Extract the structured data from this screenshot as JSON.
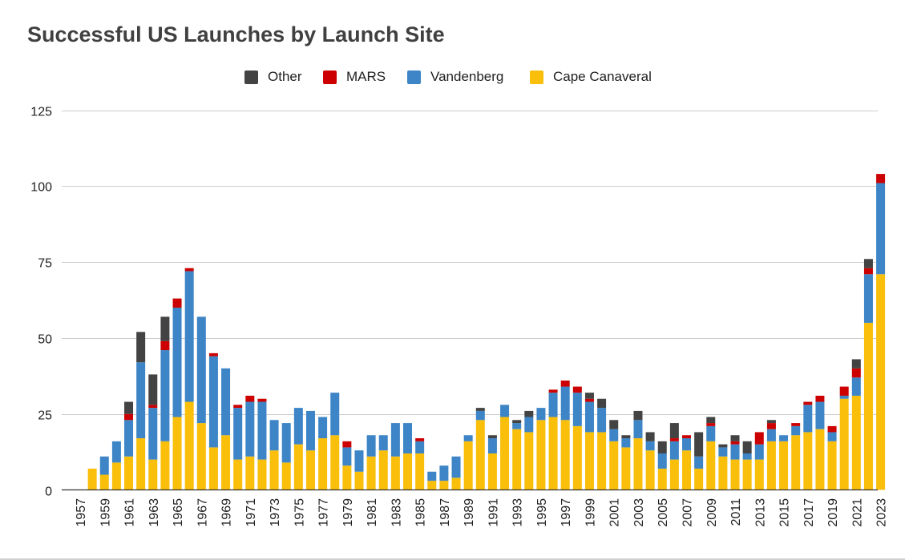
{
  "chart_data": {
    "type": "bar",
    "stacked": true,
    "title": "Successful US Launches by Launch Site",
    "xlabel": "",
    "ylabel": "",
    "ylim": [
      0,
      125
    ],
    "yticks": [
      0,
      25,
      50,
      75,
      100,
      125
    ],
    "grid": true,
    "legend_position": "top-center",
    "categories": [
      "1957",
      "1958",
      "1959",
      "1960",
      "1961",
      "1962",
      "1963",
      "1964",
      "1965",
      "1966",
      "1967",
      "1968",
      "1969",
      "1970",
      "1971",
      "1972",
      "1973",
      "1974",
      "1975",
      "1976",
      "1977",
      "1978",
      "1979",
      "1980",
      "1981",
      "1982",
      "1983",
      "1984",
      "1985",
      "1986",
      "1987",
      "1988",
      "1989",
      "1990",
      "1991",
      "1992",
      "1993",
      "1994",
      "1995",
      "1996",
      "1997",
      "1998",
      "1999",
      "2000",
      "2001",
      "2002",
      "2003",
      "2004",
      "2005",
      "2006",
      "2007",
      "2008",
      "2009",
      "2010",
      "2011",
      "2012",
      "2013",
      "2014",
      "2015",
      "2016",
      "2017",
      "2018",
      "2019",
      "2020",
      "2021",
      "2022",
      "2023"
    ],
    "tick_labels": [
      "1957",
      "1959",
      "1961",
      "1963",
      "1965",
      "1967",
      "1969",
      "1971",
      "1973",
      "1975",
      "1977",
      "1979",
      "1981",
      "1983",
      "1985",
      "1987",
      "1989",
      "1991",
      "1993",
      "1995",
      "1997",
      "1999",
      "2001",
      "2003",
      "2005",
      "2007",
      "2009",
      "2011",
      "2013",
      "2015",
      "2017",
      "2019",
      "2021",
      "2023"
    ],
    "series": [
      {
        "name": "Cape Canaveral",
        "color": "#f9bf0b",
        "values": [
          0,
          7,
          5,
          9,
          11,
          17,
          10,
          16,
          24,
          29,
          22,
          14,
          18,
          10,
          11,
          10,
          13,
          9,
          15,
          13,
          17,
          18,
          8,
          6,
          11,
          13,
          11,
          12,
          12,
          3,
          3,
          4,
          16,
          23,
          12,
          24,
          20,
          19,
          23,
          24,
          23,
          21,
          19,
          19,
          16,
          14,
          17,
          13,
          7,
          10,
          13,
          7,
          16,
          11,
          10,
          10,
          10,
          16,
          16,
          18,
          19,
          20,
          16,
          30,
          31,
          55,
          71
        ]
      },
      {
        "name": "Vandenberg",
        "color": "#3d85c6",
        "values": [
          0,
          0,
          6,
          7,
          12,
          25,
          17,
          30,
          36,
          43,
          35,
          30,
          22,
          17,
          18,
          19,
          10,
          13,
          12,
          13,
          7,
          14,
          6,
          7,
          7,
          5,
          11,
          10,
          4,
          3,
          5,
          7,
          2,
          3,
          5,
          4,
          2,
          5,
          4,
          8,
          11,
          11,
          10,
          8,
          4,
          3,
          6,
          3,
          5,
          6,
          4,
          4,
          5,
          3,
          5,
          2,
          5,
          4,
          2,
          3,
          9,
          9,
          3,
          1,
          6,
          16,
          30
        ]
      },
      {
        "name": "MARS",
        "color": "#cc0000",
        "values": [
          0,
          0,
          0,
          0,
          2,
          0,
          1,
          3,
          3,
          1,
          0,
          1,
          0,
          1,
          2,
          1,
          0,
          0,
          0,
          0,
          0,
          0,
          2,
          0,
          0,
          0,
          0,
          0,
          1,
          0,
          0,
          0,
          0,
          0,
          0,
          0,
          0,
          0,
          0,
          1,
          2,
          2,
          1,
          0,
          0,
          0,
          0,
          0,
          0,
          1,
          1,
          0,
          1,
          0,
          1,
          0,
          4,
          2,
          0,
          1,
          1,
          2,
          2,
          3,
          3,
          2,
          3
        ]
      },
      {
        "name": "Other",
        "color": "#434343",
        "values": [
          0,
          0,
          0,
          0,
          4,
          10,
          10,
          8,
          0,
          0,
          0,
          0,
          0,
          0,
          0,
          0,
          0,
          0,
          0,
          0,
          0,
          0,
          0,
          0,
          0,
          0,
          0,
          0,
          0,
          0,
          0,
          0,
          0,
          1,
          1,
          0,
          1,
          2,
          0,
          0,
          0,
          0,
          2,
          3,
          3,
          1,
          3,
          3,
          4,
          5,
          0,
          8,
          2,
          1,
          2,
          4,
          0,
          1,
          0,
          0,
          0,
          0,
          0,
          0,
          3,
          3,
          0
        ]
      }
    ]
  }
}
